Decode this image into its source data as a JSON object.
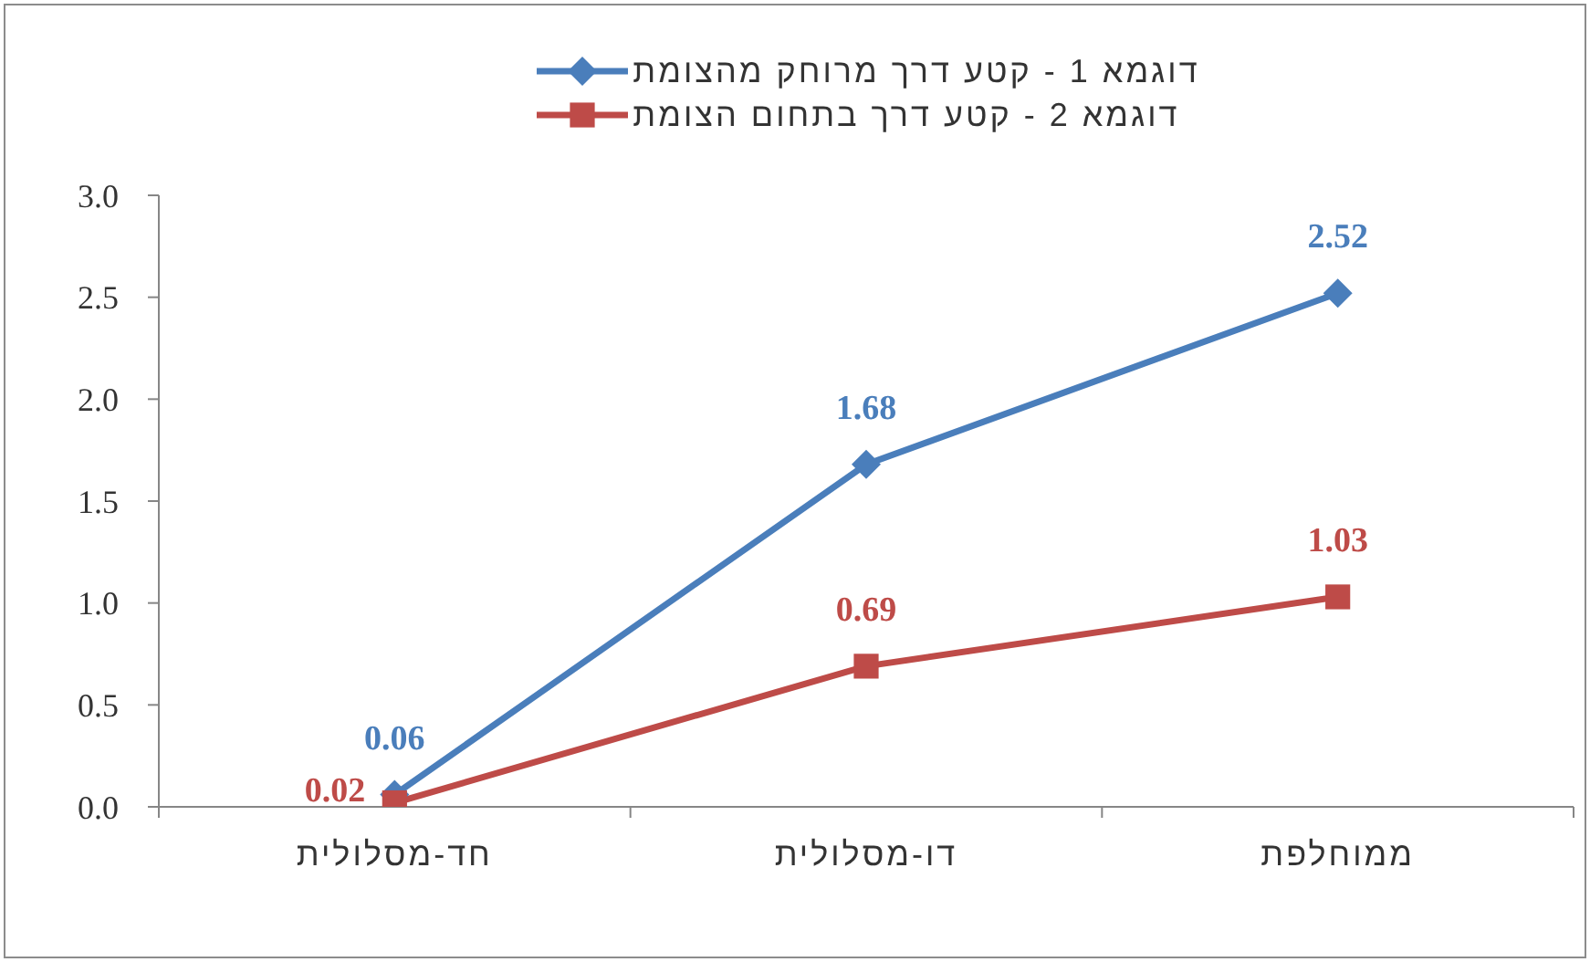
{
  "chart_data": {
    "type": "line",
    "categories": [
      "חד-מסלולית",
      "דו-מסלולית",
      "ממוחלפת"
    ],
    "series": [
      {
        "name": "דוגמא 1 - קטע דרך מרוחק מהצומת",
        "color": "#4a7ebb",
        "marker": "diamond",
        "values": [
          0.06,
          1.68,
          2.52
        ]
      },
      {
        "name": "דוגמא 2 - קטע דרך בתחום הצומת",
        "color": "#be4b48",
        "marker": "square",
        "values": [
          0.02,
          0.69,
          1.03
        ]
      }
    ],
    "ylim": [
      0,
      3
    ],
    "yticks": [
      {
        "value": 0,
        "label": "0.0"
      },
      {
        "value": 0.5,
        "label": "0.5"
      },
      {
        "value": 1,
        "label": "1.0"
      },
      {
        "value": 1.5,
        "label": "1.5"
      },
      {
        "value": 2,
        "label": "2.0"
      },
      {
        "value": 2.5,
        "label": "2.5"
      },
      {
        "value": 3,
        "label": "3.0"
      }
    ],
    "grid": false,
    "legend": "top",
    "data_labels": true,
    "line_style": "solid"
  }
}
